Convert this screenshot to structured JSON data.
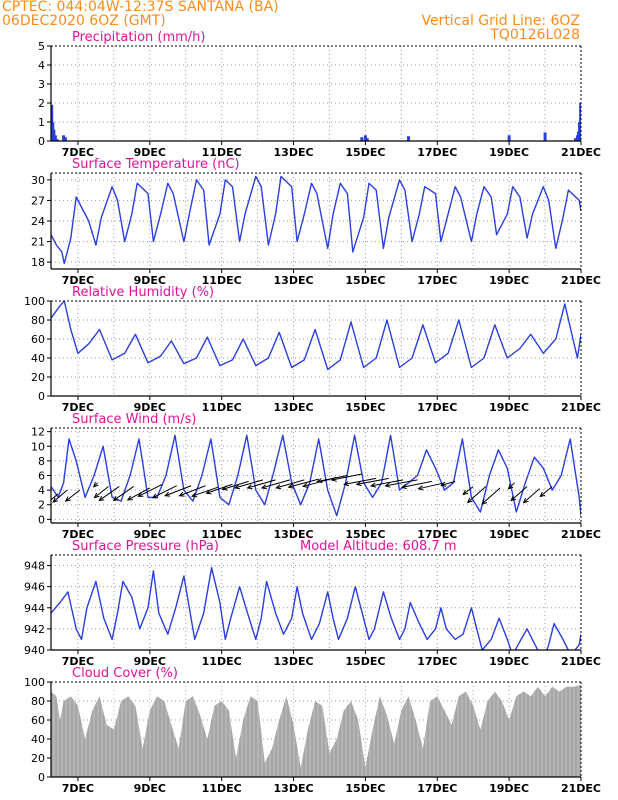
{
  "header": {
    "left_line1": "CPTEC:   044:04W-12:37S   SANTANA (BA)",
    "left_line2": "06DEC2020 6OZ (GMT)",
    "right_line1": "Vertical Grid Line: 6OZ",
    "right_line2": "TQ0126L028",
    "color": "#ff8c1a"
  },
  "chart_data": [
    {
      "id": "precip",
      "type": "bar",
      "title": "Precipitation (mm/h)",
      "ylim": [
        0,
        5
      ],
      "yticks": [
        0,
        1,
        2,
        3,
        4,
        5
      ],
      "x_range_days": [
        6.25,
        21.0
      ],
      "xticks": [
        "7DEC",
        "9DEC",
        "11DEC",
        "13DEC",
        "15DEC",
        "17DEC",
        "19DEC",
        "21DEC"
      ],
      "color": "#2a3fe0",
      "bars": [
        [
          6.27,
          1.9
        ],
        [
          6.3,
          1.0
        ],
        [
          6.33,
          0.6
        ],
        [
          6.37,
          0.3
        ],
        [
          6.42,
          0.1
        ],
        [
          6.6,
          0.3
        ],
        [
          6.65,
          0.2
        ],
        [
          14.9,
          0.2
        ],
        [
          15.0,
          0.3
        ],
        [
          15.05,
          0.15
        ],
        [
          16.2,
          0.25
        ],
        [
          19.0,
          0.3
        ],
        [
          20.0,
          0.45
        ],
        [
          20.85,
          0.15
        ],
        [
          20.9,
          0.3
        ],
        [
          20.93,
          0.5
        ],
        [
          20.96,
          1.0
        ],
        [
          20.99,
          2.0
        ]
      ]
    },
    {
      "id": "temp",
      "type": "line",
      "title": "Surface Temperature (nC)",
      "ylim": [
        17,
        31
      ],
      "yticks": [
        18,
        21,
        24,
        27,
        30
      ],
      "x_range_days": [
        6.25,
        21.0
      ],
      "xticks": [
        "7DEC",
        "9DEC",
        "11DEC",
        "13DEC",
        "15DEC",
        "17DEC",
        "19DEC",
        "21DEC"
      ],
      "color": "#2a3fe0",
      "x": [
        6.25,
        6.4,
        6.55,
        6.62,
        6.8,
        6.95,
        7.3,
        7.5,
        7.65,
        7.95,
        8.1,
        8.3,
        8.5,
        8.65,
        8.95,
        9.1,
        9.3,
        9.5,
        9.65,
        9.95,
        10.1,
        10.3,
        10.5,
        10.65,
        10.95,
        11.1,
        11.3,
        11.5,
        11.65,
        11.95,
        12.1,
        12.3,
        12.5,
        12.65,
        12.95,
        13.1,
        13.3,
        13.5,
        13.65,
        13.95,
        14.1,
        14.3,
        14.5,
        14.65,
        14.95,
        15.1,
        15.3,
        15.5,
        15.65,
        15.95,
        16.1,
        16.3,
        16.5,
        16.65,
        16.95,
        17.1,
        17.3,
        17.5,
        17.65,
        17.95,
        18.1,
        18.3,
        18.5,
        18.65,
        18.95,
        19.1,
        19.3,
        19.5,
        19.65,
        19.95,
        20.1,
        20.3,
        20.5,
        20.65,
        20.95,
        21.0
      ],
      "values": [
        22,
        20.5,
        19.5,
        17.8,
        21.5,
        27.5,
        24,
        20.5,
        24.5,
        29,
        27,
        21,
        25,
        29.5,
        28,
        21,
        25,
        29.5,
        28,
        21,
        25,
        30,
        28.5,
        20.5,
        25,
        30,
        29,
        21,
        25,
        30.5,
        29,
        20.5,
        25,
        30.5,
        29,
        21,
        25,
        29.5,
        28,
        20,
        25,
        29.5,
        28,
        19.5,
        24.5,
        29.5,
        28.5,
        20,
        24.5,
        30,
        28.5,
        21,
        25,
        29,
        28,
        21,
        25,
        29,
        27.5,
        21,
        25,
        29,
        27.5,
        22,
        25,
        29,
        27.5,
        21.5,
        25,
        29,
        27,
        20,
        24.5,
        28.5,
        27,
        25.5
      ]
    },
    {
      "id": "rh",
      "type": "line",
      "title": "Relative Humidity (%)",
      "ylim": [
        0,
        100
      ],
      "yticks": [
        0,
        20,
        40,
        60,
        80,
        100
      ],
      "x_range_days": [
        6.25,
        21.0
      ],
      "xticks": [
        "7DEC",
        "9DEC",
        "11DEC",
        "13DEC",
        "15DEC",
        "17DEC",
        "19DEC",
        "21DEC"
      ],
      "color": "#2a3fe0",
      "x": [
        6.25,
        6.5,
        6.62,
        6.8,
        7.0,
        7.3,
        7.6,
        7.95,
        8.3,
        8.6,
        8.95,
        9.3,
        9.6,
        9.95,
        10.3,
        10.6,
        10.95,
        11.3,
        11.6,
        11.95,
        12.3,
        12.6,
        12.95,
        13.3,
        13.6,
        13.95,
        14.3,
        14.6,
        14.95,
        15.3,
        15.6,
        15.95,
        16.3,
        16.6,
        16.95,
        17.3,
        17.6,
        17.95,
        18.3,
        18.6,
        18.95,
        19.3,
        19.6,
        19.95,
        20.3,
        20.55,
        20.9,
        21.0
      ],
      "values": [
        82,
        95,
        100,
        70,
        45,
        55,
        70,
        38,
        45,
        65,
        35,
        42,
        58,
        34,
        40,
        62,
        32,
        38,
        60,
        32,
        40,
        67,
        30,
        38,
        70,
        28,
        38,
        78,
        30,
        40,
        80,
        30,
        40,
        75,
        35,
        45,
        80,
        30,
        40,
        75,
        40,
        50,
        65,
        45,
        60,
        97,
        40,
        65
      ]
    },
    {
      "id": "wind",
      "type": "line",
      "title": "Surface Wind (m/s)",
      "ylim": [
        -0.5,
        12.5
      ],
      "yticks": [
        0,
        2,
        4,
        6,
        8,
        10,
        12
      ],
      "x_range_days": [
        6.25,
        21.0
      ],
      "xticks": [
        "7DEC",
        "9DEC",
        "11DEC",
        "13DEC",
        "15DEC",
        "17DEC",
        "19DEC",
        "21DEC"
      ],
      "color": "#2a3fe0",
      "x": [
        6.25,
        6.45,
        6.6,
        6.75,
        6.95,
        7.2,
        7.45,
        7.7,
        7.95,
        8.2,
        8.45,
        8.7,
        8.95,
        9.2,
        9.45,
        9.7,
        9.95,
        10.2,
        10.45,
        10.7,
        10.95,
        11.2,
        11.45,
        11.7,
        11.95,
        12.2,
        12.45,
        12.7,
        12.95,
        13.2,
        13.45,
        13.7,
        13.95,
        14.2,
        14.45,
        14.7,
        14.95,
        15.2,
        15.45,
        15.7,
        15.95,
        16.2,
        16.45,
        16.7,
        16.95,
        17.2,
        17.45,
        17.7,
        17.95,
        18.2,
        18.45,
        18.7,
        18.95,
        19.2,
        19.45,
        19.7,
        19.95,
        20.2,
        20.45,
        20.7,
        20.95,
        21.0
      ],
      "values": [
        4.5,
        3,
        5,
        11,
        8,
        3,
        6,
        10,
        3,
        2.5,
        6,
        11,
        3,
        3,
        6,
        11.5,
        4,
        2.5,
        6,
        11,
        3,
        2,
        6,
        11.5,
        4,
        2,
        6.5,
        11.5,
        5,
        2,
        5,
        11,
        4,
        0.5,
        5,
        11.5,
        5,
        3,
        5,
        11.5,
        4,
        5,
        6,
        9.5,
        7,
        4,
        5,
        11,
        3,
        1,
        6,
        9.5,
        7,
        1,
        5,
        8.5,
        7,
        4,
        6,
        11,
        3,
        0.5
      ],
      "arrows": [
        [
          6.45,
          3.5,
          -12,
          -10
        ],
        [
          6.7,
          4,
          -14,
          -12
        ],
        [
          7.05,
          4,
          -14,
          -11
        ],
        [
          7.55,
          5,
          -4,
          -4
        ],
        [
          7.85,
          4.5,
          -14,
          -11
        ],
        [
          8.15,
          4.5,
          -20,
          -14
        ],
        [
          8.55,
          4.5,
          -20,
          -14
        ],
        [
          9.0,
          4.3,
          -22,
          -12
        ],
        [
          9.35,
          4.8,
          -24,
          -12
        ],
        [
          9.75,
          4.6,
          -24,
          -12
        ],
        [
          10.15,
          4.6,
          -26,
          -10
        ],
        [
          10.55,
          4.6,
          -26,
          -10
        ],
        [
          10.9,
          4.4,
          -26,
          -9
        ],
        [
          11.3,
          4.8,
          -26,
          -9
        ],
        [
          11.75,
          5.2,
          -26,
          -8
        ],
        [
          12.15,
          5.4,
          -28,
          -8
        ],
        [
          12.5,
          5.4,
          -28,
          -8
        ],
        [
          12.9,
          5.4,
          -28,
          -8
        ],
        [
          13.3,
          5.4,
          -28,
          -8
        ],
        [
          13.7,
          5.5,
          -30,
          -8
        ],
        [
          14.1,
          5.6,
          -30,
          -8
        ],
        [
          14.5,
          6.0,
          -30,
          -6
        ],
        [
          14.9,
          6.2,
          -30,
          -6
        ],
        [
          15.3,
          5.6,
          -32,
          -6
        ],
        [
          15.65,
          5.6,
          -32,
          -6
        ],
        [
          16.05,
          5.4,
          -32,
          -6
        ],
        [
          16.45,
          5.4,
          -32,
          -6
        ],
        [
          16.85,
          5.2,
          -30,
          -6
        ],
        [
          17.2,
          5.0,
          -26,
          -6
        ],
        [
          17.5,
          5.2,
          -14,
          -4
        ],
        [
          18.0,
          4.5,
          -10,
          -8
        ],
        [
          18.35,
          4.5,
          -18,
          -16
        ],
        [
          18.75,
          4.3,
          -18,
          -16
        ],
        [
          19.15,
          5.0,
          -6,
          -6
        ],
        [
          19.5,
          4.5,
          -16,
          -14
        ],
        [
          19.85,
          4.2,
          -16,
          -14
        ],
        [
          20.2,
          4.5,
          -12,
          -10
        ]
      ]
    },
    {
      "id": "pressure",
      "type": "line",
      "title": "Surface Pressure (hPa)",
      "annotation": "Model Altitude: 608.7 m",
      "ylim": [
        940,
        949
      ],
      "yticks": [
        940,
        942,
        944,
        946,
        948
      ],
      "x_range_days": [
        6.25,
        21.0
      ],
      "xticks": [
        "7DEC",
        "9DEC",
        "11DEC",
        "13DEC",
        "15DEC",
        "17DEC",
        "19DEC",
        "21DEC"
      ],
      "color": "#2a3fe0",
      "x": [
        6.25,
        6.5,
        6.72,
        6.95,
        7.1,
        7.25,
        7.5,
        7.72,
        7.95,
        8.1,
        8.25,
        8.5,
        8.72,
        8.95,
        9.1,
        9.25,
        9.5,
        9.72,
        9.95,
        10.1,
        10.25,
        10.5,
        10.72,
        10.95,
        11.1,
        11.25,
        11.5,
        11.72,
        11.95,
        12.1,
        12.25,
        12.5,
        12.72,
        12.95,
        13.1,
        13.25,
        13.5,
        13.72,
        13.95,
        14.1,
        14.25,
        14.5,
        14.72,
        14.95,
        15.1,
        15.25,
        15.5,
        15.72,
        15.95,
        16.1,
        16.25,
        16.5,
        16.72,
        16.95,
        17.1,
        17.25,
        17.5,
        17.72,
        17.95,
        18.1,
        18.25,
        18.5,
        18.72,
        18.95,
        19.1,
        19.25,
        19.5,
        19.72,
        19.95,
        20.1,
        20.25,
        20.5,
        20.72,
        20.95,
        21.0
      ],
      "values": [
        943.5,
        944.5,
        945.5,
        942,
        941,
        944,
        946.5,
        943,
        941,
        943.5,
        946.5,
        945,
        942,
        944,
        947.5,
        943.5,
        941.5,
        944,
        947,
        944,
        941,
        943.5,
        947.8,
        944.5,
        941,
        943,
        946,
        943.5,
        941,
        943,
        946.5,
        943.5,
        941.5,
        943,
        946,
        943.5,
        941,
        942.5,
        945.5,
        943,
        941,
        943,
        946,
        943,
        941,
        942,
        945.5,
        943,
        941,
        942,
        944.5,
        942.5,
        941,
        942,
        944,
        942,
        941,
        941.5,
        944,
        942,
        940,
        941,
        943,
        941,
        939.5,
        940.5,
        942,
        940.5,
        939,
        940.5,
        942.5,
        941,
        939.5,
        940.5,
        941.5
      ]
    },
    {
      "id": "cloud",
      "type": "area",
      "title": "Cloud Cover (%)",
      "ylim": [
        0,
        100
      ],
      "yticks": [
        0,
        20,
        40,
        60,
        80,
        100
      ],
      "x_range_days": [
        6.25,
        21.0
      ],
      "xticks": [
        "7DEC",
        "9DEC",
        "11DEC",
        "13DEC",
        "15DEC",
        "17DEC",
        "19DEC",
        "21DEC"
      ],
      "color": "#a6a6a6",
      "x": [
        6.25,
        6.4,
        6.5,
        6.6,
        6.8,
        7.0,
        7.2,
        7.4,
        7.6,
        7.8,
        8.0,
        8.2,
        8.4,
        8.6,
        8.8,
        9.0,
        9.2,
        9.4,
        9.6,
        9.8,
        10.0,
        10.2,
        10.4,
        10.6,
        10.8,
        11.0,
        11.2,
        11.4,
        11.6,
        11.8,
        12.0,
        12.2,
        12.4,
        12.6,
        12.8,
        13.0,
        13.2,
        13.4,
        13.6,
        13.8,
        14.0,
        14.2,
        14.4,
        14.6,
        14.8,
        15.0,
        15.2,
        15.4,
        15.6,
        15.8,
        16.0,
        16.2,
        16.4,
        16.6,
        16.8,
        17.0,
        17.2,
        17.4,
        17.6,
        17.8,
        18.0,
        18.2,
        18.4,
        18.6,
        18.8,
        19.0,
        19.2,
        19.4,
        19.6,
        19.8,
        20.0,
        20.2,
        20.4,
        20.6,
        20.8,
        21.0
      ],
      "values": [
        90,
        85,
        60,
        80,
        85,
        75,
        40,
        70,
        85,
        55,
        50,
        80,
        85,
        75,
        30,
        70,
        85,
        80,
        55,
        30,
        80,
        85,
        65,
        40,
        75,
        80,
        70,
        20,
        60,
        85,
        80,
        15,
        30,
        60,
        85,
        55,
        10,
        50,
        80,
        75,
        25,
        40,
        70,
        80,
        60,
        10,
        50,
        85,
        65,
        35,
        70,
        85,
        60,
        30,
        80,
        85,
        70,
        55,
        85,
        90,
        75,
        50,
        80,
        90,
        80,
        60,
        85,
        90,
        85,
        95,
        85,
        95,
        90,
        95,
        95,
        97
      ]
    }
  ]
}
